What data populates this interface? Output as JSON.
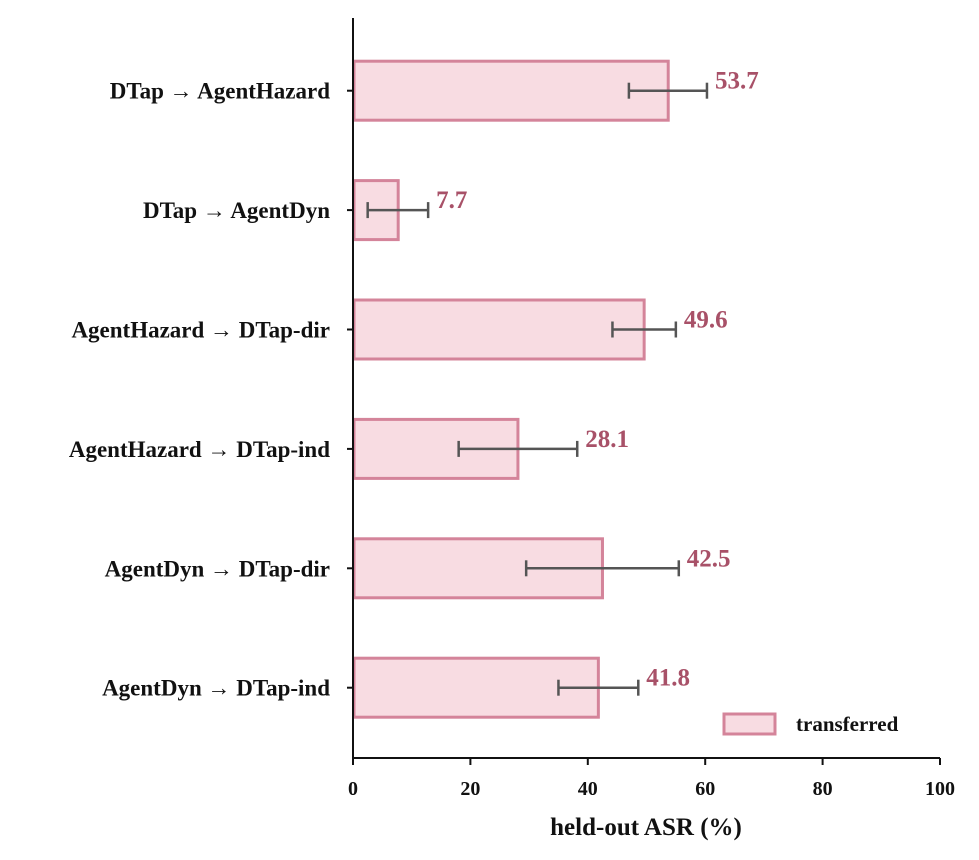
{
  "chart_data": {
    "type": "bar",
    "orientation": "horizontal",
    "title": "",
    "xlabel": "held-out ASR (%)",
    "ylabel": "",
    "xlim": [
      0,
      100
    ],
    "xticks": [
      0,
      20,
      40,
      60,
      80,
      100
    ],
    "categories": [
      "DTap → AgentHazard",
      "DTap → AgentDyn",
      "AgentHazard → DTap-dir",
      "AgentHazard → DTap-ind",
      "AgentDyn → DTap-dir",
      "AgentDyn → DTap-ind"
    ],
    "series": [
      {
        "name": "transferred",
        "values": [
          53.7,
          7.7,
          49.6,
          28.1,
          42.5,
          41.8
        ],
        "value_labels": [
          "53.7",
          "7.7",
          "49.6",
          "28.1",
          "42.5",
          "41.8"
        ],
        "error_low": [
          47.0,
          2.5,
          44.2,
          18.0,
          29.5,
          35.0
        ],
        "error_high": [
          60.3,
          12.8,
          55.0,
          38.2,
          55.5,
          48.6
        ],
        "fill_color": "#f8dce2",
        "edge_color": "#d4849a",
        "label_color": "#a85168"
      }
    ],
    "error_bar_color": "#555555",
    "grid": false,
    "legend": {
      "position": "lower-right",
      "entries": [
        "transferred"
      ]
    }
  }
}
